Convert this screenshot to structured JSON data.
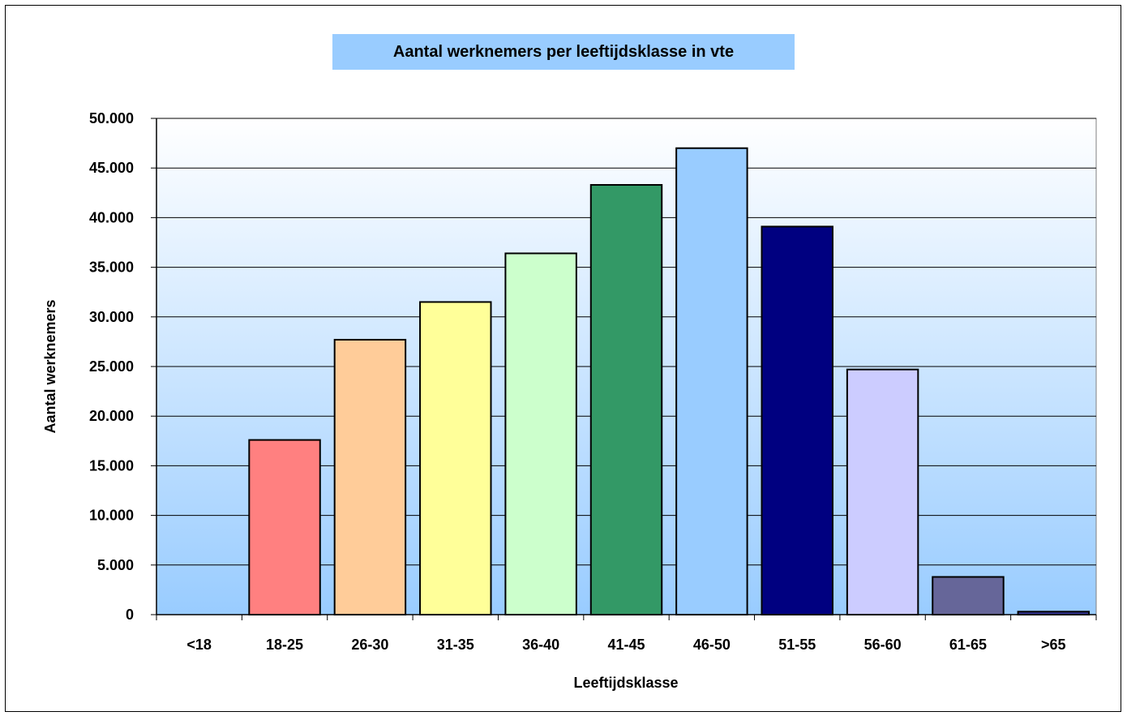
{
  "chart_data": {
    "type": "bar",
    "title": "Aantal werknemers per leeftijdsklasse in vte",
    "xlabel": "Leeftijdsklasse",
    "ylabel": "Aantal werknemers",
    "ylim": [
      0,
      50000
    ],
    "yticks": [
      0,
      5000,
      10000,
      15000,
      20000,
      25000,
      30000,
      35000,
      40000,
      45000,
      50000
    ],
    "ytick_labels": [
      "0",
      "5.000",
      "10.000",
      "15.000",
      "20.000",
      "25.000",
      "30.000",
      "35.000",
      "40.000",
      "45.000",
      "50.000"
    ],
    "categories": [
      "<18",
      "18-25",
      "26-30",
      "31-35",
      "36-40",
      "41-45",
      "46-50",
      "51-55",
      "56-60",
      "61-65",
      ">65"
    ],
    "values": [
      0,
      17600,
      27700,
      31500,
      36400,
      43300,
      47000,
      39100,
      24700,
      3800,
      300
    ],
    "colors": [
      "#99ccff",
      "#ff8080",
      "#ffcc99",
      "#ffff99",
      "#ccffcc",
      "#339966",
      "#99ccff",
      "#000080",
      "#ccccff",
      "#666699",
      "#333399"
    ],
    "grid": true,
    "legend": "none"
  }
}
